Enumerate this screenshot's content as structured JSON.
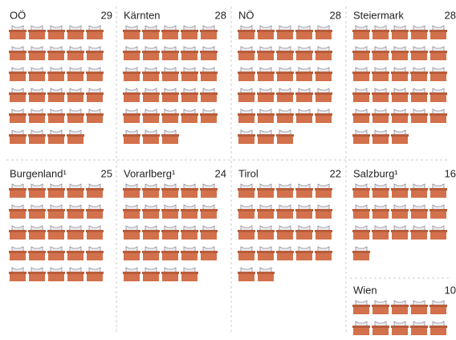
{
  "chart_data": {
    "type": "pictogram",
    "per_row": 5,
    "icon_color": "#d2714c",
    "panels": [
      {
        "name": "OÖ",
        "value": 29
      },
      {
        "name": "Kärnten",
        "value": 28
      },
      {
        "name": "NÖ",
        "value": 28
      },
      {
        "name": "Steiermark",
        "value": 28
      },
      {
        "name": "Burgenland¹",
        "value": 25
      },
      {
        "name": "Vorarlberg¹",
        "value": 24
      },
      {
        "name": "Tirol",
        "value": 22
      },
      {
        "name": "Salzburg¹",
        "value": 16
      },
      {
        "name": "Wien",
        "value": 10
      }
    ]
  }
}
